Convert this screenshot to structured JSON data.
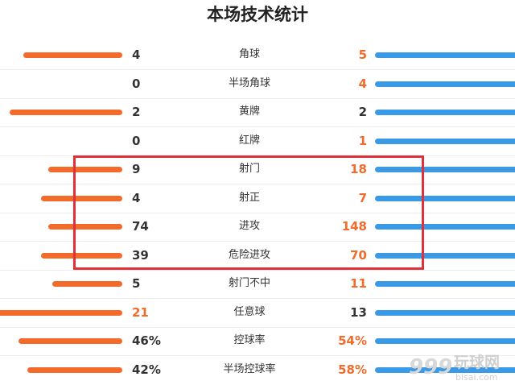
{
  "title": "本场技术统计",
  "colors": {
    "home": "#f26b2b",
    "away": "#3a9ae6",
    "highlight_box": "#e0303a"
  },
  "stats": [
    {
      "label": "角球",
      "home": "4",
      "away": "5",
      "home_hi": false,
      "away_hi": true,
      "home_share": 0.44,
      "away_share": 0.56
    },
    {
      "label": "半场角球",
      "home": "0",
      "away": "4",
      "home_hi": false,
      "away_hi": true,
      "home_share": 0.0,
      "away_share": 1.0
    },
    {
      "label": "黄牌",
      "home": "2",
      "away": "2",
      "home_hi": false,
      "away_hi": false,
      "home_share": 0.5,
      "away_share": 0.5
    },
    {
      "label": "红牌",
      "home": "0",
      "away": "1",
      "home_hi": false,
      "away_hi": true,
      "home_share": 0.0,
      "away_share": 1.0
    },
    {
      "label": "射门",
      "home": "9",
      "away": "18",
      "home_hi": false,
      "away_hi": true,
      "home_share": 0.33,
      "away_share": 0.67
    },
    {
      "label": "射正",
      "home": "4",
      "away": "7",
      "home_hi": false,
      "away_hi": true,
      "home_share": 0.36,
      "away_share": 0.64
    },
    {
      "label": "进攻",
      "home": "74",
      "away": "148",
      "home_hi": false,
      "away_hi": true,
      "home_share": 0.33,
      "away_share": 0.67
    },
    {
      "label": "危险进攻",
      "home": "39",
      "away": "70",
      "home_hi": false,
      "away_hi": true,
      "home_share": 0.36,
      "away_share": 0.64
    },
    {
      "label": "射门不中",
      "home": "5",
      "away": "11",
      "home_hi": false,
      "away_hi": true,
      "home_share": 0.31,
      "away_share": 0.69
    },
    {
      "label": "任意球",
      "home": "21",
      "away": "13",
      "home_hi": true,
      "away_hi": false,
      "home_share": 0.62,
      "away_share": 0.38
    },
    {
      "label": "控球率",
      "home": "46%",
      "away": "54%",
      "home_hi": false,
      "away_hi": true,
      "home_share": 0.46,
      "away_share": 0.54
    },
    {
      "label": "半场控球率",
      "home": "42%",
      "away": "58%",
      "home_hi": false,
      "away_hi": true,
      "home_share": 0.42,
      "away_share": 0.58
    }
  ],
  "watermark": {
    "number": "999",
    "cn": "玩球网",
    "site": "bisai.com"
  }
}
